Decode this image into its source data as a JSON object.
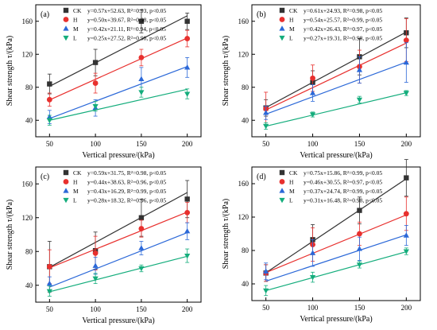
{
  "figure": {
    "colors": {
      "CK": "#333333",
      "H": "#e8302e",
      "M": "#2b68d8",
      "L": "#14ad7c"
    },
    "markers": {
      "CK": "square",
      "H": "circle",
      "M": "triangle-up",
      "L": "triangle-down"
    }
  },
  "chart_data": [
    {
      "type": "scatter",
      "panel_label": "(a)",
      "xlabel": "Vertical pressure/(kPa)",
      "ylabel": "Shear strength τ/(kPa)",
      "x": [
        50,
        100,
        150,
        200
      ],
      "xticks": [
        "50",
        "100",
        "150",
        "200"
      ],
      "xlim": [
        35,
        215
      ],
      "ylim": [
        20,
        180
      ],
      "yticks": [
        "40",
        "80",
        "120",
        "160"
      ],
      "series": [
        {
          "name": "CK",
          "values": [
            84,
            110,
            160,
            160
          ],
          "err": [
            12,
            16,
            14,
            10
          ],
          "fit": {
            "slope": 0.57,
            "intercept": 52.63
          },
          "equation": "y=0.57x+52.63, R²=0.93, p<0.05"
        },
        {
          "name": "H",
          "values": [
            65,
            85,
            116,
            139
          ],
          "err": [
            8,
            12,
            10,
            10
          ],
          "fit": {
            "slope": 0.5,
            "intercept": 39.67
          },
          "equation": "y=0.50x+39.67, R²=0.98, p<0.05"
        },
        {
          "name": "M",
          "values": [
            44,
            55,
            90,
            104
          ],
          "err": [
            8,
            10,
            14,
            12
          ],
          "fit": {
            "slope": 0.42,
            "intercept": 21.11
          },
          "equation": "y=0.42x+21.11, R²=0.94, p<0.05"
        },
        {
          "name": "L",
          "values": [
            40,
            57,
            74,
            72
          ],
          "err": [
            6,
            6,
            6,
            6
          ],
          "fit": {
            "slope": 0.25,
            "intercept": 27.52
          },
          "equation": "y=0.25x+27.52, R²=0.98, p<0.05"
        }
      ]
    },
    {
      "type": "scatter",
      "panel_label": "(b)",
      "xlabel": "Vertical pressure/(kPa)",
      "ylabel": "Shear strength τ/(kPa)",
      "x": [
        50,
        100,
        150,
        200
      ],
      "xticks": [
        "50",
        "100",
        "150",
        "200"
      ],
      "xlim": [
        35,
        215
      ],
      "ylim": [
        20,
        180
      ],
      "yticks": [
        "40",
        "80",
        "120",
        "160"
      ],
      "series": [
        {
          "name": "CK",
          "values": [
            55,
            86,
            117,
            146
          ],
          "err": [
            10,
            14,
            22,
            18
          ],
          "fit": {
            "slope": 0.61,
            "intercept": 24.93
          },
          "equation": "y=0.61x+24.93, R²=0.98, p<0.05"
        },
        {
          "name": "H",
          "values": [
            54,
            91,
            105,
            137
          ],
          "err": [
            20,
            16,
            20,
            26
          ],
          "fit": {
            "slope": 0.54,
            "intercept": 25.57
          },
          "equation": "y=0.54x+25.57, R²=0.99, p<0.05"
        },
        {
          "name": "M",
          "values": [
            49,
            73,
            101,
            110
          ],
          "err": [
            8,
            10,
            16,
            24
          ],
          "fit": {
            "slope": 0.42,
            "intercept": 26.43
          },
          "equation": "y=0.42x+26.43, R²=0.97, p<0.05"
        },
        {
          "name": "L",
          "values": [
            33,
            47,
            65,
            73
          ],
          "err": [
            4,
            3,
            4,
            3
          ],
          "fit": {
            "slope": 0.27,
            "intercept": 19.31
          },
          "equation": "y=0.27x+19.31, R²=0.98, p<0.05"
        }
      ]
    },
    {
      "type": "scatter",
      "panel_label": "(c)",
      "xlabel": "Vertical pressure/(kPa)",
      "ylabel": "Shear strength τ/(kPa)",
      "x": [
        50,
        100,
        150,
        200
      ],
      "xticks": [
        "50",
        "100",
        "150",
        "200"
      ],
      "xlim": [
        35,
        215
      ],
      "ylim": [
        20,
        180
      ],
      "yticks": [
        "40",
        "80",
        "120",
        "160"
      ],
      "series": [
        {
          "name": "CK",
          "values": [
            62,
            81,
            120,
            142
          ],
          "err": [
            30,
            22,
            22,
            22
          ],
          "fit": {
            "slope": 0.59,
            "intercept": 31.75
          },
          "equation": "y=0.59x+31.75, R²=0.98, p<0.05"
        },
        {
          "name": "H",
          "values": [
            62,
            78,
            107,
            126
          ],
          "err": [
            20,
            20,
            10,
            12
          ],
          "fit": {
            "slope": 0.44,
            "intercept": 38.63
          },
          "equation": "y=0.44x+38.63, R²=0.96, p<0.05"
        },
        {
          "name": "M",
          "values": [
            42,
            63,
            84,
            104
          ],
          "err": [
            8,
            10,
            8,
            10
          ],
          "fit": {
            "slope": 0.43,
            "intercept": 16.29
          },
          "equation": "y=0.43x+16.29, R²=0.99, p<0.05"
        },
        {
          "name": "L",
          "values": [
            33,
            48,
            60,
            75
          ],
          "err": [
            6,
            6,
            4,
            8
          ],
          "fit": {
            "slope": 0.28,
            "intercept": 18.32
          },
          "equation": "y=0.28x+18.32, R²=0.96, p<0.05"
        }
      ]
    },
    {
      "type": "scatter",
      "panel_label": "(d)",
      "xlabel": "Vertical pressure/(kPa)",
      "ylabel": "Shear strength τ/(kPa)",
      "x": [
        50,
        100,
        150,
        200
      ],
      "xticks": [
        "50",
        "100",
        "150",
        "200"
      ],
      "xlim": [
        35,
        215
      ],
      "ylim": [
        20,
        180
      ],
      "yticks": [
        "40",
        "80",
        "120",
        "160"
      ],
      "series": [
        {
          "name": "CK",
          "values": [
            53,
            93,
            128,
            167
          ],
          "err": [
            10,
            18,
            16,
            22
          ],
          "fit": {
            "slope": 0.75,
            "intercept": 15.86
          },
          "equation": "y=0.75x+15.86, R²=0.99, p<0.05"
        },
        {
          "name": "H",
          "values": [
            53,
            87,
            100,
            124
          ],
          "err": [
            10,
            20,
            14,
            20
          ],
          "fit": {
            "slope": 0.46,
            "intercept": 30.55
          },
          "equation": "y=0.46x+30.55, R²=0.97, p<0.05"
        },
        {
          "name": "M",
          "values": [
            55,
            77,
            82,
            98
          ],
          "err": [
            10,
            16,
            14,
            12
          ],
          "fit": {
            "slope": 0.37,
            "intercept": 24.74
          },
          "equation": "y=0.37x+24.74, R²=0.99, p<0.05"
        },
        {
          "name": "L",
          "values": [
            32,
            48,
            63,
            79
          ],
          "err": [
            6,
            6,
            4,
            4
          ],
          "fit": {
            "slope": 0.31,
            "intercept": 16.48
          },
          "equation": "y=0.31x+16.48, R²=0.98, p<0.05"
        }
      ]
    }
  ]
}
